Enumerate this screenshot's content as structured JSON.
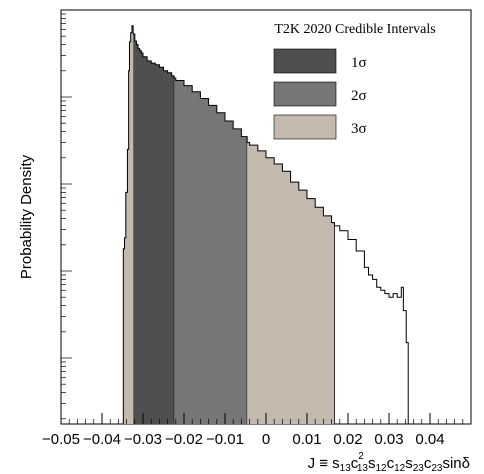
{
  "chart_data": {
    "type": "histogram",
    "xlim": [
      -0.05,
      0.05
    ],
    "ylim": [
      0,
      1.0
    ],
    "y_scale": "log",
    "y_ticks_labelled": false,
    "ylabel": "Probability Density",
    "xlabel": {
      "parts": [
        {
          "t": "J ≡ s",
          "s": ""
        },
        {
          "t": "13",
          "s": "sub"
        },
        {
          "t": "c",
          "s": ""
        },
        {
          "t": "2",
          "s": "sup"
        },
        {
          "t": "13",
          "s": "sub"
        },
        {
          "t": "s",
          "s": ""
        },
        {
          "t": "12",
          "s": "sub"
        },
        {
          "t": "c",
          "s": ""
        },
        {
          "t": "12",
          "s": "sub"
        },
        {
          "t": "s",
          "s": ""
        },
        {
          "t": "23",
          "s": "sub"
        },
        {
          "t": "c",
          "s": ""
        },
        {
          "t": "23",
          "s": "sub"
        },
        {
          "t": "sinδ",
          "s": ""
        }
      ]
    },
    "x_tick_values": [
      -0.05,
      -0.04,
      -0.03,
      -0.02,
      -0.01,
      0,
      0.01,
      0.02,
      0.03,
      0.04
    ],
    "x_tick_labels": [
      "−0.05",
      "−0.04",
      "−0.03",
      "−0.02",
      "−0.01",
      "0",
      "0.01",
      "0.02",
      "0.03",
      "0.04"
    ],
    "legend": {
      "title": "T2K 2020 Credible Intervals",
      "position": "top-right",
      "entries": [
        {
          "label": "1σ",
          "color": "#4f4f4f"
        },
        {
          "label": "2σ",
          "color": "#767676"
        },
        {
          "label": "3σ",
          "color": "#c3b9ad"
        }
      ]
    },
    "intervals": [
      {
        "name": "1σ",
        "range": [
          -0.0324,
          -0.0224
        ],
        "color": "#4f4f4f"
      },
      {
        "name": "2σ",
        "range": [
          -0.0224,
          -0.0046
        ],
        "color": "#767676"
      },
      {
        "name": "3σ",
        "range": [
          -0.0046,
          0.0167
        ],
        "color": "#c3b9ad"
      }
    ],
    "outer_tail": {
      "ranges": [
        [
          -0.0348,
          -0.0324
        ],
        [
          0.0167,
          0.0342
        ]
      ],
      "color": "#c3b9ad"
    },
    "histogram": {
      "x": [
        -0.0348,
        -0.0345,
        -0.0342,
        -0.0338,
        -0.0335,
        -0.0333,
        -0.033,
        -0.0327,
        -0.0324,
        -0.032,
        -0.0316,
        -0.0312,
        -0.0308,
        -0.0304,
        -0.03,
        -0.029,
        -0.028,
        -0.027,
        -0.026,
        -0.025,
        -0.024,
        -0.023,
        -0.0224,
        -0.022,
        -0.02,
        -0.018,
        -0.016,
        -0.014,
        -0.012,
        -0.01,
        -0.008,
        -0.006,
        -0.0046,
        -0.004,
        -0.002,
        0.0,
        0.002,
        0.004,
        0.006,
        0.008,
        0.01,
        0.012,
        0.014,
        0.016,
        0.0167,
        0.018,
        0.02,
        0.022,
        0.024,
        0.025,
        0.026,
        0.027,
        0.028,
        0.029,
        0.03,
        0.031,
        0.032,
        0.033,
        0.0335,
        0.0342
      ],
      "density": [
        0.0018,
        0.0024,
        0.008,
        0.025,
        0.2,
        0.43,
        0.55,
        0.66,
        0.53,
        0.44,
        0.4,
        0.36,
        0.34,
        0.32,
        0.29,
        0.26,
        0.245,
        0.235,
        0.22,
        0.2,
        0.19,
        0.175,
        0.165,
        0.155,
        0.135,
        0.115,
        0.096,
        0.08,
        0.066,
        0.053,
        0.043,
        0.035,
        0.03,
        0.028,
        0.024,
        0.02,
        0.017,
        0.014,
        0.0105,
        0.0085,
        0.0068,
        0.0054,
        0.0043,
        0.0036,
        0.0033,
        0.0029,
        0.0023,
        0.0017,
        0.0011,
        0.0009,
        0.0008,
        0.00065,
        0.0006,
        0.00055,
        0.0005,
        0.00055,
        0.0005,
        0.00065,
        0.00035,
        0.00015
      ]
    }
  }
}
